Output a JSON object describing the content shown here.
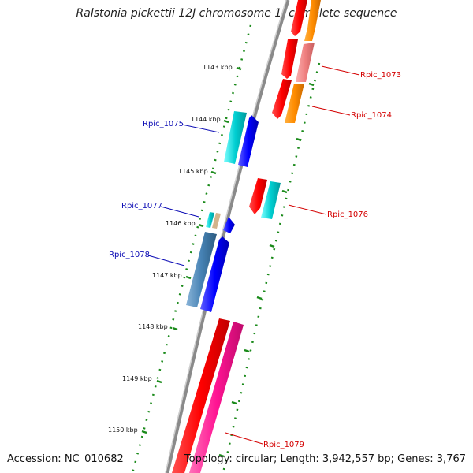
{
  "title": "Ralstonia pickettii 12J chromosome 1, complete sequence",
  "footer": {
    "accession": "Accession: NC_010682",
    "summary": "Topology: circular; Length: 3,942,557 bp; Genes: 3,767"
  },
  "scale_labels": [
    "1143 kbp",
    "1144 kbp",
    "1145 kbp",
    "1146 kbp",
    "1147 kbp",
    "1148 kbp",
    "1149 kbp",
    "1150 kbp"
  ],
  "genes_left": [
    "Rpic_1075",
    "Rpic_1077",
    "Rpic_1078"
  ],
  "genes_right": [
    "Rpic_1073",
    "Rpic_1074",
    "Rpic_1076",
    "Rpic_1079"
  ],
  "colors": {
    "backbone": "#8a8a8a",
    "tick": "#1a8a1a",
    "label_left": "#0a0ab4",
    "label_right": "#d40000",
    "red": "#ff0000",
    "orange": "#ff8c00",
    "pink": "#f08080",
    "cyan": "#00ced1",
    "blue": "#0000ff",
    "steel": "#4682b4",
    "magenta": "#ff1493",
    "tan": "#d2b48c"
  }
}
